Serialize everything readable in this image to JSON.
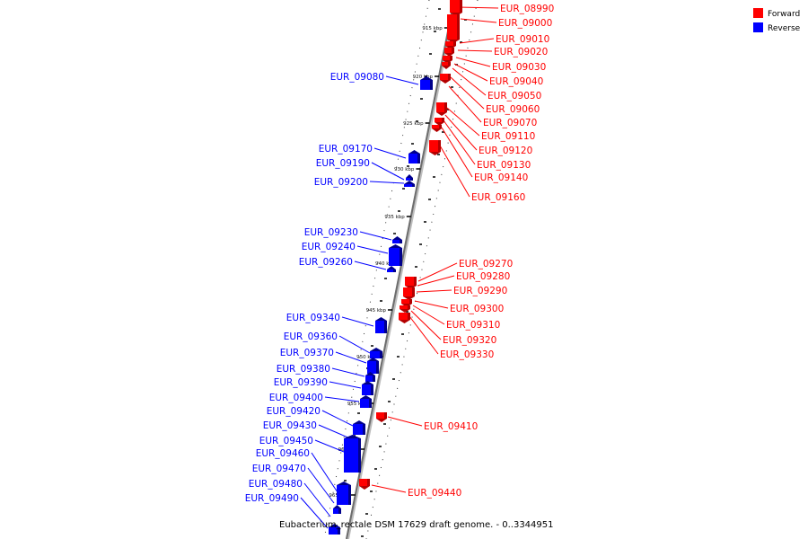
{
  "legend": [
    {
      "label": "Forward",
      "color": "#ff0000"
    },
    {
      "label": "Reverse",
      "color": "#0000ff"
    }
  ],
  "caption": "Eubacterium_rectale DSM 17629 draft genome. - 0..3344951",
  "kbp_labels": [
    "915 kbp",
    "920 kbp",
    "925 kbp",
    "930 kbp",
    "935 kbp",
    "940 kbp",
    "945 kbp",
    "950 kbp",
    "955 kbp",
    "960 kbp",
    "965 kbp"
  ],
  "forward_genes": [
    "EUR_08990",
    "EUR_09000",
    "EUR_09010",
    "EUR_09020",
    "EUR_09030",
    "EUR_09040",
    "EUR_09050",
    "EUR_09060",
    "EUR_09070",
    "EUR_09110",
    "EUR_09120",
    "EUR_09130",
    "EUR_09140",
    "EUR_09160",
    "EUR_09270",
    "EUR_09280",
    "EUR_09290",
    "EUR_09300",
    "EUR_09310",
    "EUR_09320",
    "EUR_09330",
    "EUR_09410",
    "EUR_09440"
  ],
  "reverse_genes": [
    "EUR_09080",
    "EUR_09170",
    "EUR_09190",
    "EUR_09200",
    "EUR_09230",
    "EUR_09240",
    "EUR_09260",
    "EUR_09340",
    "EUR_09360",
    "EUR_09370",
    "EUR_09380",
    "EUR_09390",
    "EUR_09400",
    "EUR_09420",
    "EUR_09430",
    "EUR_09450",
    "EUR_09460",
    "EUR_09470",
    "EUR_09480",
    "EUR_09490"
  ]
}
